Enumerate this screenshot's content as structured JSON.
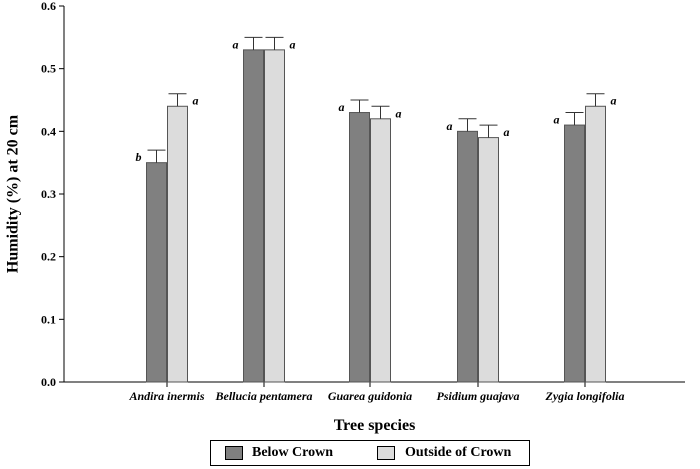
{
  "chart_data": {
    "type": "bar",
    "xlabel": "Tree species",
    "ylabel": "Humidity (%) at 20 cm",
    "ylim": [
      0,
      0.6
    ],
    "yticks": [
      "0.0",
      "0.1",
      "0.2",
      "0.3",
      "0.4",
      "0.5",
      "0.6"
    ],
    "categories": [
      "Andira inermis",
      "Bellucia pentamera",
      "Guarea guidonia",
      "Psidium guajava",
      "Zygia longifolia"
    ],
    "series": [
      {
        "name": "Below Crown",
        "color": "#808080",
        "values": [
          0.35,
          0.53,
          0.43,
          0.4,
          0.41
        ],
        "errors": [
          0.02,
          0.02,
          0.02,
          0.02,
          0.02
        ],
        "letters": [
          "b",
          "a",
          "a",
          "a",
          "a"
        ]
      },
      {
        "name": "Outside of Crown",
        "color": "#dcdcdc",
        "values": [
          0.44,
          0.53,
          0.42,
          0.39,
          0.44
        ],
        "errors": [
          0.02,
          0.02,
          0.02,
          0.02,
          0.02
        ],
        "letters": [
          "a",
          "a",
          "a",
          "a",
          "a"
        ]
      }
    ],
    "grid": false,
    "legend_position": "bottom"
  }
}
